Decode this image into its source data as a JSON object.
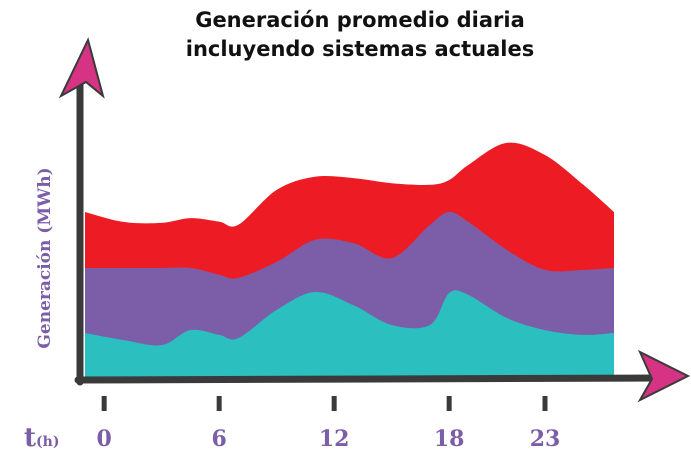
{
  "chart_data": {
    "type": "stacked_area",
    "title": [
      "Generación promedio diaria",
      "incluyendo sistemas actuales"
    ],
    "ylabel": "Generación (MWh)",
    "xlabel": "t",
    "xlabel_unit": "(h)",
    "x": [
      -1,
      1,
      3,
      4.5,
      6,
      7,
      9,
      11,
      13,
      15,
      17,
      18,
      19,
      21,
      23,
      25,
      26.6
    ],
    "series": [
      {
        "color": "#2bbfbf",
        "values": [
          14.7,
          12.5,
          10.9,
          15.6,
          14.1,
          13.1,
          21.9,
          27.5,
          23.4,
          17.2,
          17.2,
          27.2,
          26.6,
          19.4,
          15.6,
          14.1,
          14.7
        ]
      },
      {
        "color": "#7b5ea7",
        "values": [
          20.3,
          22.5,
          24.1,
          19.4,
          18.8,
          18.8,
          15,
          16.3,
          19.4,
          20.9,
          31.3,
          25.3,
          22.8,
          21.3,
          18.8,
          20.3,
          20.3
        ]
      },
      {
        "color": "#ed1c24",
        "values": [
          17.5,
          14.4,
          14.1,
          15.6,
          16.6,
          16.6,
          22.5,
          19.7,
          20.3,
          23.4,
          12.5,
          10,
          17.8,
          33.4,
          35.9,
          26.6,
          17.5
        ]
      }
    ],
    "xlim": [
      -1,
      29
    ],
    "ylim": [
      0,
      100
    ],
    "xticks": [
      0,
      6,
      12,
      18,
      23
    ]
  }
}
